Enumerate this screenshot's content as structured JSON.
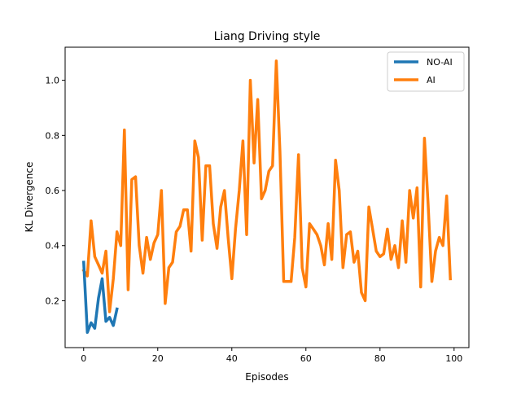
{
  "chart_data": {
    "type": "line",
    "title": "Liang Driving style",
    "xlabel": "Episodes",
    "ylabel": "KL Divergence",
    "xlim": [
      -5,
      104
    ],
    "ylim": [
      0.03,
      1.12
    ],
    "x_ticks": [
      0,
      20,
      40,
      60,
      80,
      100
    ],
    "x_tick_labels": [
      "0",
      "20",
      "40",
      "60",
      "80",
      "100"
    ],
    "y_ticks": [
      0.2,
      0.4,
      0.6,
      0.8,
      1.0
    ],
    "y_tick_labels": [
      "0.2",
      "0.4",
      "0.6",
      "0.8",
      "1.0"
    ],
    "grid": false,
    "legend_position": "top-right",
    "series": [
      {
        "name": "NO-AI",
        "color": "#1f77b4",
        "x": [
          0,
          1,
          2,
          3,
          4,
          5,
          6,
          7,
          8,
          9
        ],
        "y": [
          0.34,
          0.085,
          0.12,
          0.1,
          0.21,
          0.28,
          0.125,
          0.14,
          0.11,
          0.17
        ]
      },
      {
        "name": "AI",
        "color": "#ff7f0e",
        "x": [
          0,
          1,
          2,
          3,
          4,
          5,
          6,
          7,
          8,
          9,
          10,
          11,
          12,
          13,
          14,
          15,
          16,
          17,
          18,
          19,
          20,
          21,
          22,
          23,
          24,
          25,
          26,
          27,
          28,
          29,
          30,
          31,
          32,
          33,
          34,
          35,
          36,
          37,
          38,
          39,
          40,
          41,
          42,
          43,
          44,
          45,
          46,
          47,
          48,
          49,
          50,
          51,
          52,
          53,
          54,
          55,
          56,
          57,
          58,
          59,
          60,
          61,
          62,
          63,
          64,
          65,
          66,
          67,
          68,
          69,
          70,
          71,
          72,
          73,
          74,
          75,
          76,
          77,
          78,
          79,
          80,
          81,
          82,
          83,
          84,
          85,
          86,
          87,
          88,
          89,
          90,
          91,
          92,
          93,
          94,
          95,
          96,
          97,
          98,
          99
        ],
        "y": [
          0.31,
          0.29,
          0.49,
          0.36,
          0.33,
          0.3,
          0.38,
          0.16,
          0.28,
          0.45,
          0.4,
          0.82,
          0.24,
          0.64,
          0.65,
          0.4,
          0.3,
          0.43,
          0.35,
          0.41,
          0.44,
          0.6,
          0.19,
          0.32,
          0.34,
          0.45,
          0.47,
          0.53,
          0.53,
          0.38,
          0.78,
          0.72,
          0.42,
          0.69,
          0.69,
          0.48,
          0.39,
          0.54,
          0.6,
          0.43,
          0.28,
          0.46,
          0.6,
          0.78,
          0.44,
          1.0,
          0.7,
          0.93,
          0.57,
          0.6,
          0.67,
          0.69,
          1.07,
          0.74,
          0.27,
          0.27,
          0.27,
          0.43,
          0.73,
          0.32,
          0.25,
          0.48,
          0.46,
          0.44,
          0.4,
          0.33,
          0.48,
          0.35,
          0.71,
          0.6,
          0.32,
          0.44,
          0.45,
          0.34,
          0.38,
          0.23,
          0.2,
          0.54,
          0.46,
          0.38,
          0.36,
          0.37,
          0.46,
          0.35,
          0.4,
          0.32,
          0.49,
          0.34,
          0.6,
          0.5,
          0.61,
          0.25,
          0.79,
          0.55,
          0.27,
          0.38,
          0.43,
          0.4,
          0.58,
          0.28
        ]
      }
    ]
  }
}
